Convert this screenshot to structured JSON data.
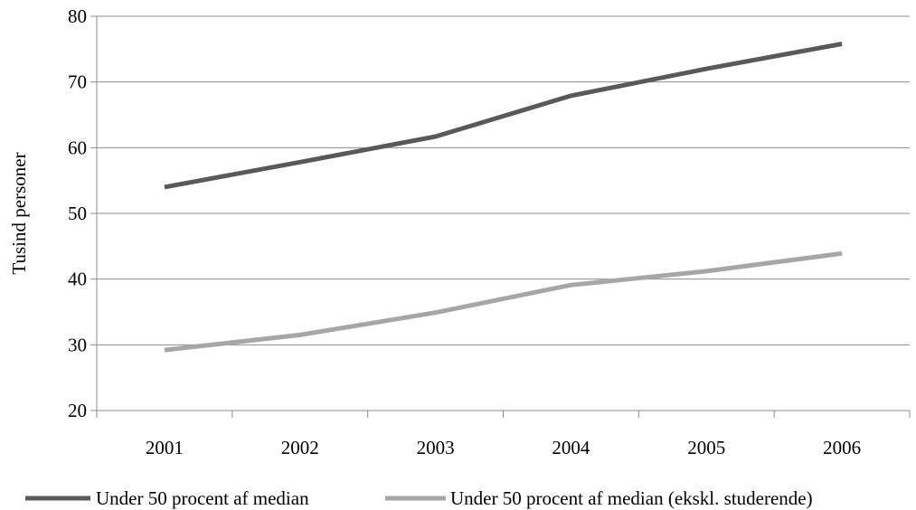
{
  "chart_data": {
    "type": "line",
    "title": "",
    "xlabel": "",
    "ylabel": "Tusind personer",
    "categories": [
      "2001",
      "2002",
      "2003",
      "2004",
      "2005",
      "2006"
    ],
    "ylim": [
      20,
      80
    ],
    "yticks": [
      20,
      30,
      40,
      50,
      60,
      70,
      80
    ],
    "grid": true,
    "legend_position": "bottom",
    "series": [
      {
        "name": "Under 50 procent af median",
        "color": "#595959",
        "values": [
          54,
          57.8,
          61.7,
          67.9,
          72,
          75.8
        ]
      },
      {
        "name": "Under 50 procent af median (ekskl. studerende)",
        "color": "#a6a6a6",
        "values": [
          29.2,
          31.5,
          34.9,
          39.1,
          41.2,
          43.9
        ]
      }
    ]
  }
}
